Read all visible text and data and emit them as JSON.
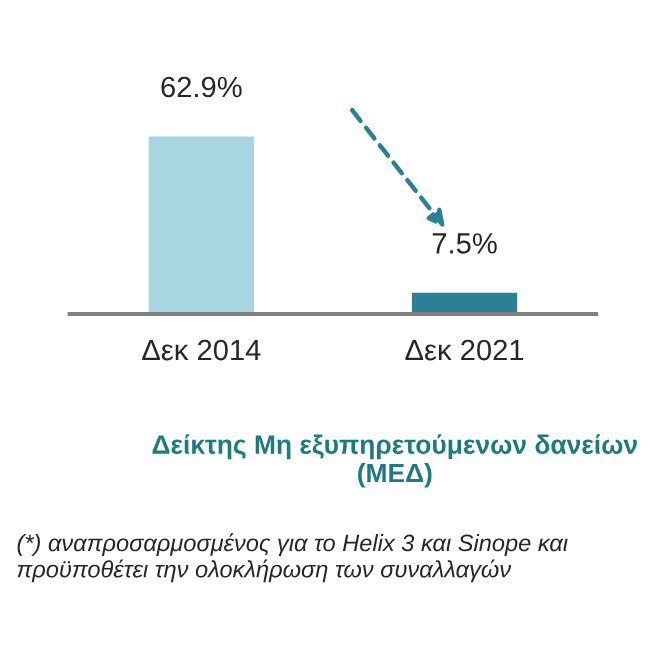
{
  "chart_data": {
    "type": "bar",
    "title": "Δείκτης Μη εξυπηρετούμενων δανείων (ΜΕΔ)",
    "categories": [
      "Δεκ 2014",
      "Δεκ 2021"
    ],
    "values": [
      62.9,
      7.5
    ],
    "value_labels": [
      "62.9%",
      "7.5%"
    ],
    "colors": [
      "#a8d5e2",
      "#2e7f93"
    ],
    "annotations": [
      "(*) αναπροσαρμοσμένος για το Helix 3 και Sinope και προϋποθέτει την ολοκλήρωση των συναλλαγών"
    ],
    "grid": false,
    "legend": false
  }
}
